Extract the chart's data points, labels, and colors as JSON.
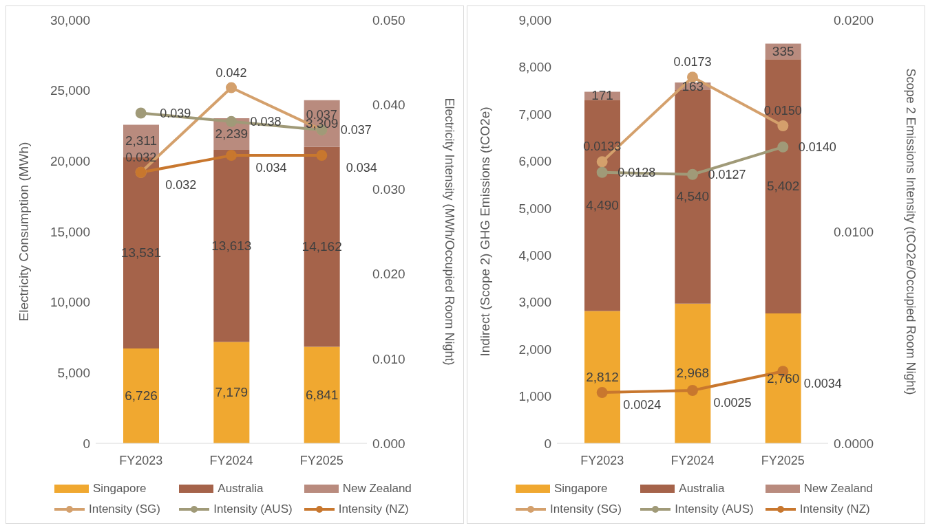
{
  "chart_data": [
    {
      "type": "bar",
      "stacked": true,
      "legend": "bottom",
      "categories": [
        "FY2023",
        "FY2024",
        "FY2025"
      ],
      "ylabel": "Electricity Consumption (MWh)",
      "y2label": "Electricity Intensity (MWh/Occupied Room Night)",
      "ylim": [
        0,
        30000
      ],
      "yticks": [
        {
          "value": 0,
          "label": "0"
        },
        {
          "value": 5000,
          "label": "5,000"
        },
        {
          "value": 10000,
          "label": "10,000"
        },
        {
          "value": 15000,
          "label": "15,000"
        },
        {
          "value": 20000,
          "label": "20,000"
        },
        {
          "value": 25000,
          "label": "25,000"
        },
        {
          "value": 30000,
          "label": "30,000"
        }
      ],
      "y2lim": [
        0,
        0.05
      ],
      "y2ticks": [
        {
          "value": 0,
          "label": "0.000"
        },
        {
          "value": 0.01,
          "label": "0.010"
        },
        {
          "value": 0.02,
          "label": "0.020"
        },
        {
          "value": 0.03,
          "label": "0.030"
        },
        {
          "value": 0.04,
          "label": "0.040"
        },
        {
          "value": 0.05,
          "label": "0.050"
        }
      ],
      "series": [
        {
          "name": "Singapore",
          "color": "#f0a830",
          "values": [
            6726,
            7179,
            6841
          ],
          "value_labels": [
            "6,726",
            "7,179",
            "6,841"
          ]
        },
        {
          "name": "Australia",
          "color": "#a5634a",
          "values": [
            13531,
            13613,
            14162
          ],
          "value_labels": [
            "13,531",
            "13,613",
            "14,162"
          ]
        },
        {
          "name": "New Zealand",
          "color": "#b98b7e",
          "values": [
            2311,
            2239,
            3309
          ],
          "value_labels": [
            "2,311",
            "2,239",
            "3,309"
          ]
        },
        {
          "name": "Intensity (SG)",
          "type": "line",
          "axis": "y2",
          "marker": "circle",
          "color": "#d4a06c",
          "values": [
            0.032,
            0.042,
            0.037
          ],
          "value_labels": [
            "0.032",
            "0.042",
            "0.037"
          ]
        },
        {
          "name": "Intensity (AUS)",
          "type": "line",
          "axis": "y2",
          "marker": "circle",
          "color": "#a09a78",
          "values": [
            0.039,
            0.038,
            0.037
          ],
          "value_labels": [
            "0.039",
            "0.038",
            "0.037"
          ]
        },
        {
          "name": "Intensity (NZ)",
          "type": "line",
          "axis": "y2",
          "marker": "circle",
          "color": "#c8772e",
          "values": [
            0.032,
            0.034,
            0.034
          ],
          "value_labels": [
            "0.032",
            "0.034",
            "0.034"
          ]
        }
      ]
    },
    {
      "type": "bar",
      "stacked": true,
      "legend": "bottom",
      "categories": [
        "FY2023",
        "FY2024",
        "FY2025"
      ],
      "ylabel": "Indirect (Scope 2) GHG Emissions (tCO2e)",
      "y2label": "Scope 2 Emissions Intensity (tCO2e/Occupied Room Night)",
      "ylim": [
        0,
        9000
      ],
      "yticks": [
        {
          "value": 0,
          "label": "0"
        },
        {
          "value": 1000,
          "label": "1,000"
        },
        {
          "value": 2000,
          "label": "2,000"
        },
        {
          "value": 3000,
          "label": "3,000"
        },
        {
          "value": 4000,
          "label": "4,000"
        },
        {
          "value": 5000,
          "label": "5,000"
        },
        {
          "value": 6000,
          "label": "6,000"
        },
        {
          "value": 7000,
          "label": "7,000"
        },
        {
          "value": 8000,
          "label": "8,000"
        },
        {
          "value": 9000,
          "label": "9,000"
        }
      ],
      "y2lim": [
        0,
        0.02
      ],
      "y2ticks": [
        {
          "value": 0,
          "label": "0.0000"
        },
        {
          "value": 0.01,
          "label": "0.0100"
        },
        {
          "value": 0.02,
          "label": "0.0200"
        }
      ],
      "series": [
        {
          "name": "Singapore",
          "color": "#f0a830",
          "values": [
            2812,
            2968,
            2760
          ],
          "value_labels": [
            "2,812",
            "2,968",
            "2,760"
          ]
        },
        {
          "name": "Australia",
          "color": "#a5634a",
          "values": [
            4490,
            4540,
            5402
          ],
          "value_labels": [
            "4,490",
            "4,540",
            "5,402"
          ]
        },
        {
          "name": "New Zealand",
          "color": "#b98b7e",
          "values": [
            171,
            163,
            335
          ],
          "value_labels": [
            "171",
            "163",
            "335"
          ]
        },
        {
          "name": "Intensity (SG)",
          "type": "line",
          "axis": "y2",
          "marker": "circle",
          "color": "#d4a06c",
          "values": [
            0.0133,
            0.0173,
            0.015
          ],
          "value_labels": [
            "0.0133",
            "0.0173",
            "0.0150"
          ]
        },
        {
          "name": "Intensity (AUS)",
          "type": "line",
          "axis": "y2",
          "marker": "circle",
          "color": "#a09a78",
          "values": [
            0.0128,
            0.0127,
            0.014
          ],
          "value_labels": [
            "0.0128",
            "0.0127",
            "0.0140"
          ]
        },
        {
          "name": "Intensity (NZ)",
          "type": "line",
          "axis": "y2",
          "marker": "circle",
          "color": "#c8772e",
          "values": [
            0.0024,
            0.0025,
            0.0034
          ],
          "value_labels": [
            "0.0024",
            "0.0025",
            "0.0034"
          ]
        }
      ]
    }
  ]
}
